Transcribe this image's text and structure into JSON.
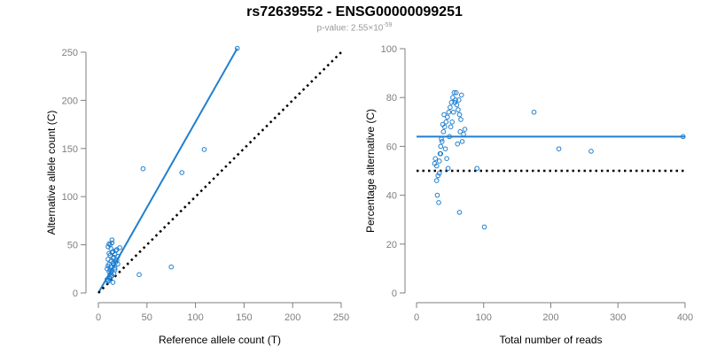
{
  "header": {
    "title": "rs72639552 - ENSG00000099251",
    "pvalue_prefix": "p-value: 2.55×10",
    "pvalue_exponent": "-59"
  },
  "colors": {
    "points": "#1f7fd0",
    "fit_line": "#1f7fd0",
    "reference_line": "#000000",
    "axis": "#7f7f7f"
  },
  "chart_data": [
    {
      "type": "scatter",
      "title": "",
      "xlabel": "Reference allele count (T)",
      "ylabel": "Alternative allele count (C)",
      "xlim": [
        0,
        250
      ],
      "ylim": [
        0,
        250
      ],
      "xticks": [
        0,
        50,
        100,
        150,
        200,
        250
      ],
      "yticks": [
        0,
        50,
        100,
        150,
        200,
        250
      ],
      "grid": false,
      "lines": [
        {
          "style": "solid",
          "x": [
            0,
            143
          ],
          "y": [
            0,
            254
          ]
        },
        {
          "style": "dotted",
          "x": [
            0,
            250
          ],
          "y": [
            0,
            250
          ]
        }
      ],
      "points": {
        "x": [
          143,
          109,
          86,
          46,
          75,
          42,
          10,
          12,
          14,
          16,
          9,
          11,
          13,
          15,
          17,
          19,
          10,
          12,
          14,
          18,
          20,
          11,
          13,
          15,
          9,
          12,
          16,
          10,
          14,
          22,
          11,
          13,
          17,
          12,
          15,
          10,
          19,
          13,
          16,
          11,
          14,
          12,
          18,
          10,
          15,
          13,
          20,
          17,
          11,
          14
        ],
        "y": [
          254,
          149,
          125,
          129,
          27,
          19,
          12,
          15,
          18,
          20,
          25,
          30,
          33,
          36,
          40,
          45,
          48,
          50,
          52,
          44,
          38,
          22,
          27,
          31,
          14,
          24,
          29,
          35,
          42,
          47,
          16,
          21,
          26,
          39,
          43,
          28,
          34,
          46,
          37,
          41,
          23,
          19,
          32,
          13,
          11,
          17,
          30,
          24,
          51,
          55
        ]
      }
    },
    {
      "type": "scatter",
      "title": "",
      "xlabel": "Total number of reads",
      "ylabel": "Percentage alternative (C)",
      "xlim": [
        0,
        400
      ],
      "ylim": [
        0,
        100
      ],
      "xticks": [
        0,
        100,
        200,
        300,
        400
      ],
      "yticks": [
        0,
        20,
        40,
        60,
        80,
        100
      ],
      "grid": false,
      "lines": [
        {
          "style": "solid",
          "x": [
            0,
            400
          ],
          "y": [
            64,
            64
          ]
        },
        {
          "style": "dotted",
          "x": [
            0,
            400
          ],
          "y": [
            50,
            50
          ]
        }
      ],
      "points": {
        "x": [
          397,
          175,
          212,
          260,
          101,
          64,
          90,
          28,
          30,
          32,
          34,
          36,
          38,
          40,
          42,
          44,
          46,
          48,
          50,
          52,
          54,
          56,
          58,
          60,
          62,
          64,
          66,
          68,
          70,
          72,
          31,
          33,
          35,
          37,
          39,
          41,
          43,
          45,
          47,
          49,
          51,
          53,
          55,
          57,
          59,
          61,
          63,
          65,
          67,
          30,
          27,
          34,
          36
        ],
        "y": [
          64,
          74,
          59,
          58,
          27,
          33,
          51,
          55,
          52,
          48,
          54,
          60,
          62,
          66,
          68,
          70,
          72,
          74,
          76,
          78,
          80,
          82,
          79,
          77,
          75,
          73,
          71,
          62,
          65,
          67,
          40,
          37,
          57,
          63,
          69,
          73,
          59,
          55,
          51,
          64,
          68,
          70,
          74,
          78,
          82,
          61,
          79,
          66,
          81,
          46,
          53,
          49,
          57
        ]
      }
    }
  ]
}
